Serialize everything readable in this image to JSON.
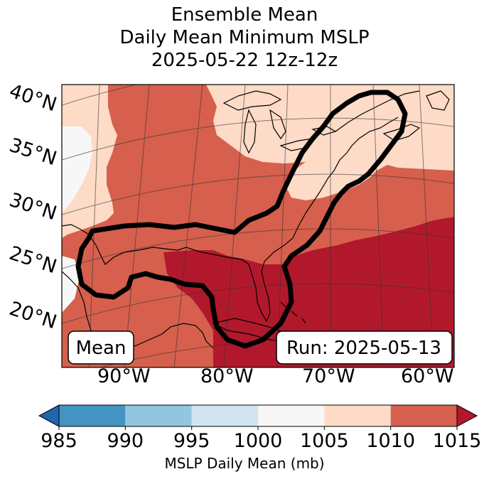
{
  "title": {
    "line1": "Ensemble Mean",
    "line2": "Daily Mean Minimum MSLP",
    "line3": "2025-05-22 12z-12z"
  },
  "map": {
    "lat_labels": [
      "40°N",
      "35°N",
      "30°N",
      "25°N",
      "20°N"
    ],
    "lon_labels": [
      "90°W",
      "80°W",
      "70°W",
      "60°W"
    ],
    "box_left": "Mean",
    "box_right": "Run: 2025-05-13",
    "field_levels": {
      "1000-1005": "#f7f7f7",
      "1005-1010": "#fddbc7",
      "1010-1015": "#d6604d",
      "gt1015": "#b2182b"
    },
    "contour_color": "#000000"
  },
  "colorbar": {
    "ticks": [
      "985",
      "990",
      "995",
      "1000",
      "1005",
      "1010",
      "1015"
    ],
    "colors": [
      "#2166ac",
      "#4393c3",
      "#92c5de",
      "#d1e5f0",
      "#f7f7f7",
      "#fddbc7",
      "#d6604d",
      "#b2182b"
    ],
    "label": "MSLP Daily Mean (mb)"
  }
}
